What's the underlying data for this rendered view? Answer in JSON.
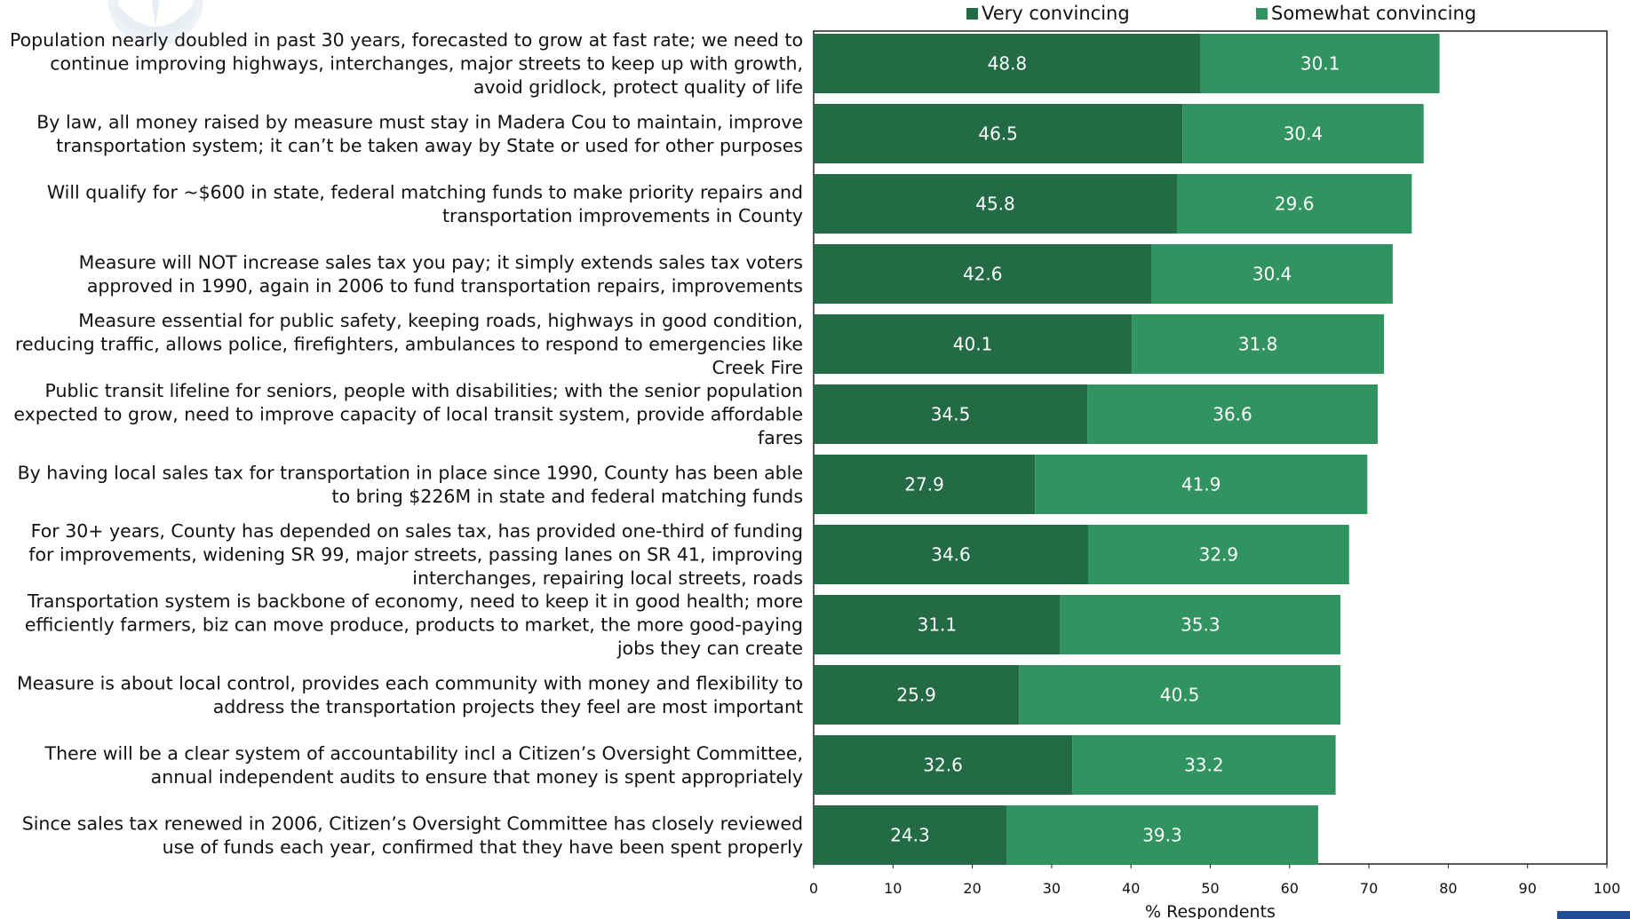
{
  "chart_data": {
    "type": "bar",
    "orientation": "horizontal",
    "stacked": true,
    "categories": [
      "Population nearly doubled in past 30 years, forecasted to grow at fast rate; we need to continue improving highways, interchanges, major streets to keep up with growth, avoid gridlock, protect quality of life",
      "By law, all money raised by measure must stay in Madera Cou to maintain, improve transportation system; it can’t be taken away by State or used for other purposes",
      "Will qualify for ~$600 in state, federal matching funds to make priority repairs and transportation improvements in County",
      "Measure will NOT increase sales tax you pay; it simply extends sales tax voters approved in 1990, again in 2006 to fund transportation repairs, improvements",
      "Measure essential for public safety, keeping roads, highways in good condition, reducing traffic, allows police, firefighters, ambulances to respond to emergencies like Creek Fire",
      "Public transit lifeline for seniors, people with disabilities; with the senior population expected to grow, need to improve capacity of local transit system, provide affordable fares",
      "By having local sales tax for transportation in place since 1990, County has been able to bring $226M in state and federal matching funds",
      "For 30+ years, County has depended on sales tax, has provided one-third of funding for improvements, widening SR 99, major streets, passing lanes on SR 41, improving interchanges, repairing local streets, roads",
      "Transportation system is backbone of economy, need to keep it in good health; more efficiently farmers, biz can move produce, products to market, the more good-paying jobs they can create",
      "Measure is about local control, provides each community with money and flexibility to address the transportation projects they feel are most important",
      "There will be a clear system of accountability incl a Citizen’s Oversight Committee, annual independent audits to ensure that money is spent appropriately",
      "Since sales tax renewed in 2006, Citizen’s Oversight Committee has closely reviewed use of funds each year, confirmed that they have been spent properly"
    ],
    "category_lines": [
      [
        "Population nearly doubled in past 30 years, forecasted to grow at fast rate; we need to",
        "continue improving highways, interchanges, major streets to keep up with growth,",
        "avoid gridlock, protect quality of life"
      ],
      [
        "By law, all money raised by measure must stay in Madera Cou to maintain, improve",
        "transportation system; it can’t be taken away by State or used for other purposes"
      ],
      [
        "Will qualify for ~$600 in state, federal matching funds to make priority repairs and",
        "transportation improvements in County"
      ],
      [
        "Measure will NOT increase sales tax you pay; it simply extends sales tax voters",
        "approved in 1990, again in 2006 to fund transportation repairs, improvements"
      ],
      [
        "Measure essential for public safety, keeping roads, highways in good condition,",
        "reducing traffic, allows police, firefighters, ambulances to respond to emergencies like",
        "Creek Fire"
      ],
      [
        "Public transit lifeline for seniors, people with disabilities; with the senior population",
        "expected to grow, need to improve capacity of local transit system, provide affordable",
        "fares"
      ],
      [
        "By having local sales tax for transportation in place since 1990, County has been able",
        "to bring $226M in state and federal matching funds"
      ],
      [
        "For 30+ years, County has depended on sales tax, has provided one-third of funding",
        "for improvements, widening SR 99, major streets, passing lanes on SR 41, improving",
        "interchanges, repairing local streets, roads"
      ],
      [
        "Transportation system is backbone of economy, need to keep it in good health; more",
        "efficiently farmers, biz can move produce, products to market, the more good-paying",
        "jobs they can create"
      ],
      [
        "Measure is about local control, provides each community with money and flexibility to",
        "address the transportation projects they feel are most important"
      ],
      [
        "There will be a clear system of accountability incl a Citizen’s Oversight Committee,",
        "annual independent audits to ensure that money is spent appropriately"
      ],
      [
        "Since sales tax renewed in 2006, Citizen’s Oversight Committee has closely reviewed",
        "use of funds each year, confirmed that they have been spent properly"
      ]
    ],
    "series": [
      {
        "name": "Very convincing",
        "color": "#226b45",
        "values": [
          48.8,
          46.5,
          45.8,
          42.6,
          40.1,
          34.5,
          27.9,
          34.6,
          31.1,
          25.9,
          32.6,
          24.3
        ]
      },
      {
        "name": "Somewhat convincing",
        "color": "#31935f",
        "values": [
          30.1,
          30.4,
          29.6,
          30.4,
          31.8,
          36.6,
          41.9,
          32.9,
          35.3,
          40.5,
          33.2,
          39.3
        ]
      }
    ],
    "xlabel": "% Respondents",
    "xlim": [
      0,
      100
    ],
    "xticks": [
      0,
      10,
      20,
      30,
      40,
      50,
      60,
      70,
      80,
      90,
      100
    ],
    "legend_position": "top",
    "grid": false,
    "data_label_color": "#ffffff"
  }
}
